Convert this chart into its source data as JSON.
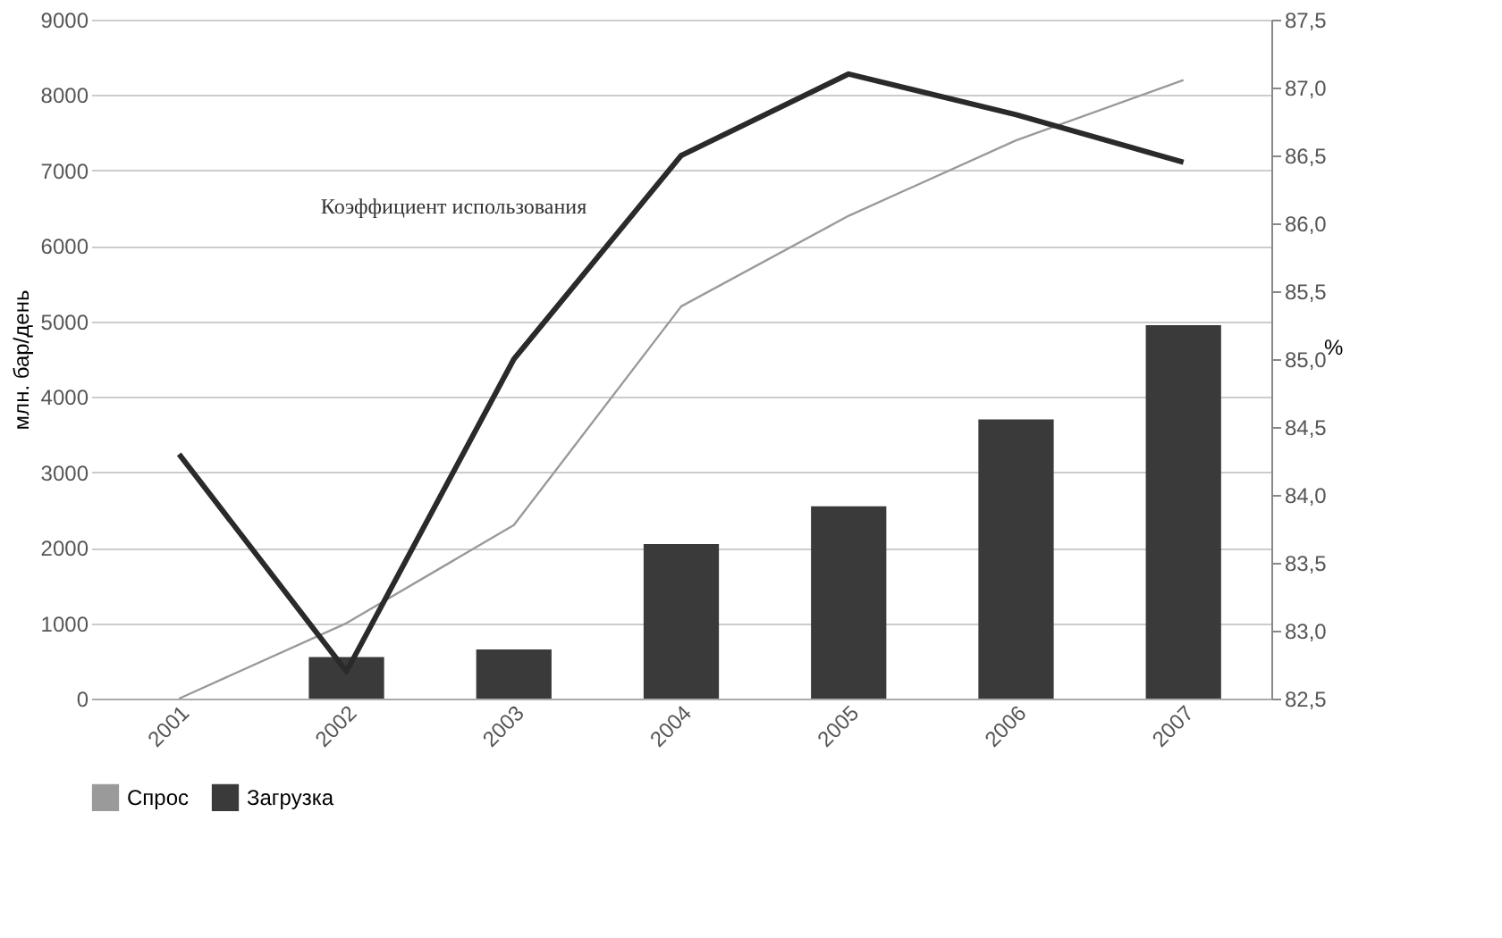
{
  "chart_data": {
    "type": "bar",
    "categories": [
      "2001",
      "2002",
      "2003",
      "2004",
      "2005",
      "2006",
      "2007"
    ],
    "ylabel": "млн. бар/день",
    "y2label": "%",
    "ylim": [
      0,
      9000
    ],
    "yticks": [
      0,
      1000,
      2000,
      3000,
      4000,
      5000,
      6000,
      7000,
      8000,
      9000
    ],
    "y2lim": [
      82.5,
      87.5
    ],
    "y2ticks": [
      {
        "value": 82.5,
        "label": "82,5"
      },
      {
        "value": 83,
        "label": "83,0"
      },
      {
        "value": 83.5,
        "label": "83,5"
      },
      {
        "value": 84,
        "label": "84,0"
      },
      {
        "value": 84.5,
        "label": "84,5"
      },
      {
        "value": 85,
        "label": "85,0"
      },
      {
        "value": 85.5,
        "label": "85,5"
      },
      {
        "value": 86,
        "label": "86,0"
      },
      {
        "value": 86.5,
        "label": "86,5"
      },
      {
        "value": 87,
        "label": "87,0"
      },
      {
        "value": 87.5,
        "label": "87,5"
      }
    ],
    "series": [
      {
        "name": "Спрос",
        "type": "line",
        "color": "#9a9a9a",
        "values": [
          0,
          1000,
          2300,
          5200,
          6400,
          7400,
          8200
        ]
      },
      {
        "name": "Загрузка",
        "color": "#3a3a3a",
        "values": [
          0,
          550,
          650,
          2050,
          2550,
          3700,
          4950
        ]
      },
      {
        "name": "Коэффициент использования",
        "type": "line",
        "axis": "y2",
        "color": "#2a2a2a",
        "values": [
          84.3,
          82.7,
          85.0,
          86.5,
          87.1,
          86.8,
          86.45
        ]
      }
    ],
    "grid": "y",
    "legend": "bottom left"
  }
}
